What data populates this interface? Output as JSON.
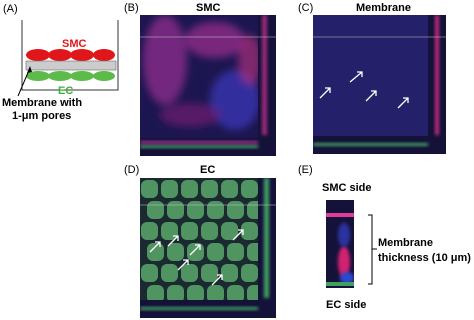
{
  "panel_a": {
    "label": "(A)",
    "top_layer": "SMC",
    "bottom_layer": "EC",
    "membrane_note": [
      "Membrane with",
      "1-μm pores"
    ]
  },
  "panel_b": {
    "label": "(B)",
    "title": "SMC"
  },
  "panel_c": {
    "label": "(C)",
    "title": "Membrane"
  },
  "panel_d": {
    "label": "(D)",
    "title": "EC"
  },
  "panel_e": {
    "label": "(E)",
    "top": "SMC side",
    "bracket_note": [
      "Membrane",
      "thickness (10 μm)"
    ],
    "bottom": "EC side"
  }
}
